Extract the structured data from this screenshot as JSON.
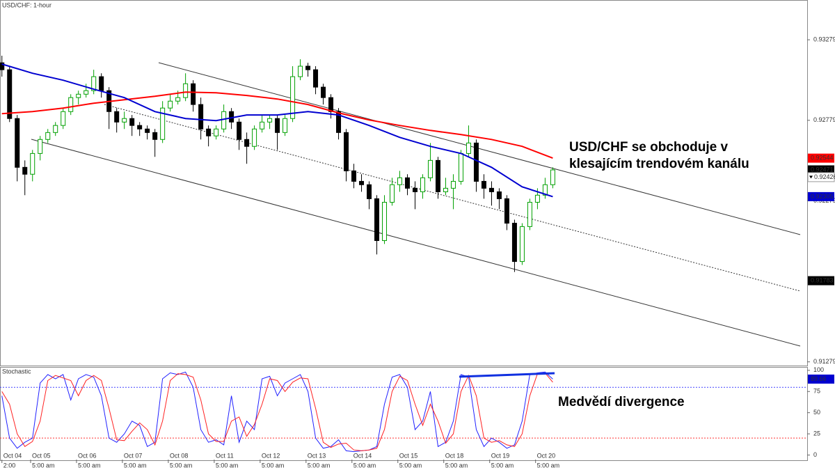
{
  "chart_data": [
    {
      "type": "candlestick",
      "title": "USD/CHF: 1-hour",
      "xlim": [
        -1,
        421
      ],
      "ylim": [
        0.91256,
        0.93526
      ],
      "yticks": [
        0.93279,
        0.92779,
        0.92279,
        0.91279
      ],
      "up_color": "#00a000",
      "down_color": "#000000",
      "x": [
        0,
        4,
        8,
        12,
        16,
        20,
        24,
        28,
        32,
        36,
        40,
        44,
        48,
        52,
        56,
        60,
        64,
        68,
        72,
        76,
        80,
        84,
        88,
        92,
        96,
        100,
        104,
        108,
        112,
        116,
        120,
        124,
        128,
        132,
        136,
        140,
        144,
        148,
        152,
        156,
        160,
        164,
        168,
        172,
        176,
        180,
        184,
        188,
        192,
        196,
        200,
        204,
        208,
        212,
        216,
        220,
        224,
        228,
        232,
        236,
        240,
        244,
        248,
        252,
        256,
        260,
        264,
        268,
        272,
        276,
        280,
        284,
        288
      ],
      "ohlc": [
        [
          0.93136,
          0.9318,
          0.9305,
          0.93093
        ],
        [
          0.93093,
          0.93115,
          0.92768,
          0.9279
        ],
        [
          0.9279,
          0.92812,
          0.924,
          0.92487
        ],
        [
          0.92487,
          0.9253,
          0.92314,
          0.92444
        ],
        [
          0.92444,
          0.92595,
          0.924,
          0.92573
        ],
        [
          0.92573,
          0.92682,
          0.9253,
          0.9266
        ],
        [
          0.9266,
          0.92725,
          0.92638,
          0.92703
        ],
        [
          0.92703,
          0.92768,
          0.92682,
          0.92747
        ],
        [
          0.92747,
          0.92855,
          0.92725,
          0.92833
        ],
        [
          0.92833,
          0.92941,
          0.92812,
          0.9292
        ],
        [
          0.9292,
          0.92963,
          0.92877,
          0.92941
        ],
        [
          0.92941,
          0.93006,
          0.9292,
          0.92963
        ],
        [
          0.92963,
          0.93093,
          0.92941,
          0.9305
        ],
        [
          0.9305,
          0.93071,
          0.9292,
          0.92963
        ],
        [
          0.92963,
          0.92985,
          0.92725,
          0.92833
        ],
        [
          0.92833,
          0.92855,
          0.92703,
          0.92768
        ],
        [
          0.92768,
          0.92833,
          0.92725,
          0.9279
        ],
        [
          0.9279,
          0.92812,
          0.92682,
          0.92747
        ],
        [
          0.92747,
          0.92768,
          0.92682,
          0.92725
        ],
        [
          0.92725,
          0.92747,
          0.9266,
          0.92703
        ],
        [
          0.92703,
          0.92725,
          0.92552,
          0.9266
        ],
        [
          0.9266,
          0.92898,
          0.92638,
          0.92855
        ],
        [
          0.92855,
          0.92941,
          0.92833,
          0.92898
        ],
        [
          0.92898,
          0.92963,
          0.92877,
          0.9292
        ],
        [
          0.9292,
          0.93071,
          0.92898,
          0.93006
        ],
        [
          0.93006,
          0.93028,
          0.92833,
          0.92877
        ],
        [
          0.92877,
          0.9292,
          0.9266,
          0.92725
        ],
        [
          0.92725,
          0.92747,
          0.92617,
          0.92682
        ],
        [
          0.92682,
          0.92747,
          0.9266,
          0.92725
        ],
        [
          0.92725,
          0.92877,
          0.92703,
          0.92833
        ],
        [
          0.92833,
          0.92855,
          0.92725,
          0.92768
        ],
        [
          0.92768,
          0.9279,
          0.92595,
          0.9266
        ],
        [
          0.9266,
          0.92703,
          0.92509,
          0.92617
        ],
        [
          0.92617,
          0.92747,
          0.92595,
          0.92725
        ],
        [
          0.92725,
          0.92812,
          0.92703,
          0.92768
        ],
        [
          0.92768,
          0.92812,
          0.92725,
          0.9279
        ],
        [
          0.9279,
          0.92812,
          0.92595,
          0.92703
        ],
        [
          0.92703,
          0.92812,
          0.92682,
          0.9279
        ],
        [
          0.9279,
          0.93115,
          0.92768,
          0.9305
        ],
        [
          0.9305,
          0.93158,
          0.93028,
          0.93115
        ],
        [
          0.93115,
          0.93136,
          0.9305,
          0.93093
        ],
        [
          0.93093,
          0.93115,
          0.92941,
          0.92985
        ],
        [
          0.92985,
          0.93006,
          0.92877,
          0.9292
        ],
        [
          0.9292,
          0.92941,
          0.9279,
          0.92833
        ],
        [
          0.92833,
          0.92855,
          0.9266,
          0.92703
        ],
        [
          0.92703,
          0.92725,
          0.924,
          0.92465
        ],
        [
          0.92465,
          0.92509,
          0.92357,
          0.924
        ],
        [
          0.924,
          0.92444,
          0.92335,
          0.92379
        ],
        [
          0.92379,
          0.924,
          0.92227,
          0.92292
        ],
        [
          0.92292,
          0.92314,
          0.91946,
          0.92032
        ],
        [
          0.92032,
          0.92314,
          0.92011,
          0.9227
        ],
        [
          0.9227,
          0.92422,
          0.92249,
          0.92379
        ],
        [
          0.92379,
          0.92465,
          0.92335,
          0.92422
        ],
        [
          0.92422,
          0.92444,
          0.92314,
          0.92357
        ],
        [
          0.92357,
          0.924,
          0.92227,
          0.92335
        ],
        [
          0.92335,
          0.92444,
          0.92292,
          0.92422
        ],
        [
          0.92422,
          0.92638,
          0.924,
          0.9253
        ],
        [
          0.9253,
          0.92552,
          0.92292,
          0.92335
        ],
        [
          0.92335,
          0.92422,
          0.92314,
          0.92357
        ],
        [
          0.92357,
          0.92444,
          0.92227,
          0.924
        ],
        [
          0.924,
          0.92595,
          0.92379,
          0.92573
        ],
        [
          0.92573,
          0.92747,
          0.92552,
          0.92638
        ],
        [
          0.92638,
          0.9266,
          0.92335,
          0.924
        ],
        [
          0.924,
          0.92444,
          0.92292,
          0.92357
        ],
        [
          0.92357,
          0.924,
          0.92249,
          0.92335
        ],
        [
          0.92335,
          0.92357,
          0.92227,
          0.92292
        ],
        [
          0.92292,
          0.92314,
          0.92097,
          0.9214
        ],
        [
          0.9214,
          0.92162,
          0.91837,
          0.91902
        ],
        [
          0.91902,
          0.9214,
          0.91881,
          0.92119
        ],
        [
          0.92119,
          0.92292,
          0.92097,
          0.9227
        ],
        [
          0.9227,
          0.92357,
          0.92227,
          0.92314
        ],
        [
          0.92314,
          0.92422,
          0.92292,
          0.92379
        ],
        [
          0.92379,
          0.92487,
          0.92357,
          0.92471
        ]
      ],
      "series": [
        {
          "color": "#ff0000",
          "x": [
            0,
            16,
            32,
            48,
            64,
            80,
            96,
            112,
            128,
            144,
            160,
            176,
            192,
            208,
            224,
            240,
            256,
            272,
            288
          ],
          "values": [
            0.9282,
            0.92833,
            0.92855,
            0.92885,
            0.92907,
            0.92928,
            0.92954,
            0.9295,
            0.92933,
            0.92911,
            0.92877,
            0.92825,
            0.92781,
            0.92747,
            0.92716,
            0.9269,
            0.9266,
            0.92617,
            0.92544
          ]
        },
        {
          "color": "#0000d0",
          "x": [
            0,
            16,
            32,
            48,
            64,
            80,
            96,
            112,
            128,
            144,
            160,
            176,
            192,
            208,
            224,
            240,
            256,
            272,
            288
          ],
          "values": [
            0.93128,
            0.93071,
            0.93028,
            0.92972,
            0.9292,
            0.92833,
            0.9279,
            0.92777,
            0.92812,
            0.92812,
            0.92833,
            0.92812,
            0.92747,
            0.92673,
            0.92617,
            0.92573,
            0.92487,
            0.92366,
            0.92305
          ]
        }
      ],
      "price_markers": [
        {
          "value": 0.92544,
          "color": "#ff0000"
        },
        {
          "value": 0.92471,
          "color": "#000000"
        },
        {
          "value": 0.92426,
          "color": "#ffffff"
        },
        {
          "value": 0.92305,
          "color": "#0000d0"
        },
        {
          "value": 0.91783,
          "color": "#000000"
        }
      ],
      "annotations": [
        "USD/CHF se obchoduje v",
        "klesajícím trendovém kanálu"
      ]
    },
    {
      "type": "line",
      "title": "Stochastic",
      "xlim": [
        -1,
        421
      ],
      "ylim": [
        -7,
        104
      ],
      "yticks": [
        100,
        75,
        50,
        25,
        0
      ],
      "levels": [
        {
          "value": 80,
          "color": "#4040ff"
        },
        {
          "value": 20,
          "color": "#ff3030"
        }
      ],
      "x": [
        0,
        4,
        8,
        12,
        16,
        20,
        24,
        28,
        32,
        36,
        40,
        44,
        48,
        52,
        56,
        60,
        64,
        68,
        72,
        76,
        80,
        84,
        88,
        92,
        96,
        100,
        104,
        108,
        112,
        116,
        120,
        124,
        128,
        132,
        136,
        140,
        144,
        148,
        152,
        156,
        160,
        164,
        168,
        172,
        176,
        180,
        184,
        188,
        192,
        196,
        200,
        204,
        208,
        212,
        216,
        220,
        224,
        228,
        232,
        236,
        240,
        244,
        248,
        252,
        256,
        260,
        264,
        268,
        272,
        276,
        280,
        284,
        288
      ],
      "series": [
        {
          "color": "#2020ff",
          "values": [
            70,
            20,
            8,
            15,
            20,
            85,
            95,
            90,
            95,
            65,
            90,
            95,
            92,
            70,
            20,
            15,
            25,
            40,
            35,
            10,
            15,
            90,
            97,
            95,
            98,
            80,
            30,
            15,
            18,
            12,
            70,
            15,
            40,
            30,
            90,
            93,
            70,
            85,
            90,
            95,
            75,
            20,
            8,
            10,
            18,
            5,
            4,
            5,
            6,
            10,
            60,
            92,
            95,
            80,
            30,
            40,
            75,
            10,
            15,
            40,
            95,
            92,
            30,
            10,
            20,
            15,
            8,
            12,
            40,
            95,
            97,
            98,
            89.66
          ]
        },
        {
          "color": "#ff2020",
          "values": [
            75,
            60,
            25,
            10,
            16,
            40,
            88,
            94,
            91,
            88,
            70,
            88,
            94,
            88,
            55,
            18,
            17,
            28,
            38,
            30,
            12,
            40,
            88,
            96,
            95,
            92,
            65,
            25,
            16,
            16,
            40,
            45,
            22,
            36,
            60,
            90,
            88,
            75,
            86,
            91,
            90,
            55,
            15,
            9,
            13,
            14,
            6,
            5,
            6,
            8,
            30,
            75,
            93,
            88,
            60,
            35,
            60,
            40,
            14,
            25,
            75,
            94,
            70,
            20,
            15,
            17,
            12,
            10,
            25,
            70,
            96,
            97,
            86
          ]
        }
      ],
      "value_marker": {
        "value": 89.66,
        "color": "#0000d0"
      },
      "xticks": [
        {
          "value": 0,
          "label": "Oct 04"
        },
        {
          "value": 15,
          "label": "Oct 05"
        },
        {
          "value": 39,
          "label": "Oct 06"
        },
        {
          "value": 63,
          "label": "Oct 07"
        },
        {
          "value": 87,
          "label": "Oct 08"
        },
        {
          "value": 111,
          "label": "Oct 11"
        },
        {
          "value": 135,
          "label": "Oct 12"
        },
        {
          "value": 159,
          "label": "Oct 13"
        },
        {
          "value": 183,
          "label": "Oct 14"
        },
        {
          "value": 207,
          "label": "Oct 15"
        },
        {
          "value": 231,
          "label": "Oct 18"
        },
        {
          "value": 255,
          "label": "Oct 19"
        },
        {
          "value": 279,
          "label": "Oct 20"
        }
      ],
      "xtick_sublabels": [
        "2:00",
        "5:00 am",
        "5:00 am",
        "5:00 am",
        "5:00 am",
        "5:00 am",
        "5:00 am",
        "5:00 am",
        "5:00 am",
        "5:00 am",
        "5:00 am",
        "5:00 am",
        "5:00 am"
      ],
      "annotation": "Medvědí divergence"
    }
  ]
}
